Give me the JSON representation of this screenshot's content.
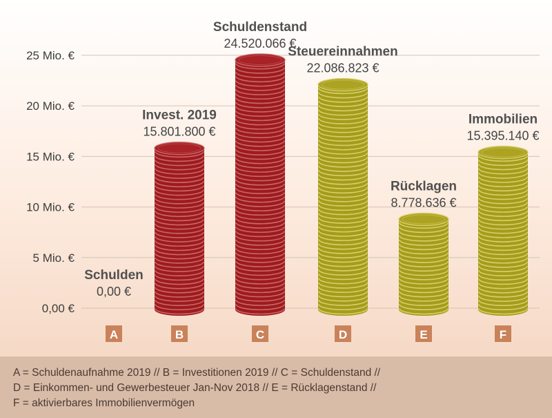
{
  "chart_data": {
    "type": "bar",
    "title": "",
    "xlabel": "",
    "ylabel": "",
    "ylim": [
      0,
      25000000
    ],
    "grid": true,
    "y_ticks": [
      {
        "value": 0,
        "label": "0,00 €"
      },
      {
        "value": 5000000,
        "label": "5 Mio. €"
      },
      {
        "value": 10000000,
        "label": "10 Mio. €"
      },
      {
        "value": 15000000,
        "label": "15 Mio. €"
      },
      {
        "value": 20000000,
        "label": "20 Mio. €"
      },
      {
        "value": 25000000,
        "label": "25 Mio. €"
      }
    ],
    "categories": [
      "A",
      "B",
      "C",
      "D",
      "E",
      "F"
    ],
    "values": [
      0,
      15801800,
      24520066,
      22086823,
      8778636,
      15395140
    ],
    "bar_titles": [
      "Schulden",
      "Invest. 2019",
      "Schuldenstand",
      "Steuereinnahmen",
      "Rücklagen",
      "Immobilien"
    ],
    "value_labels": [
      "0,00 €",
      "15.801.800 €",
      "24.520.066 €",
      "22.086.823 €",
      "8.778.636 €",
      "15.395.140 €"
    ],
    "bar_colors": [
      "#9e1b1e",
      "#9e1b1e",
      "#9e1b1e",
      "#a59c1c",
      "#a59c1c",
      "#a59c1c"
    ],
    "bar_edge_colors": [
      "#c9686a",
      "#c9686a",
      "#c9686a",
      "#d6cf6a",
      "#d6cf6a",
      "#d6cf6a"
    ],
    "bar_top_colors": [
      "#a82226",
      "#a82226",
      "#a82226",
      "#ada323",
      "#ada323",
      "#ada323"
    ],
    "category_box_color": "#c9825a",
    "grid_color": "#d5c3b5"
  },
  "legend": {
    "lines": [
      "A = Schuldenaufnahme 2019 // B = Investitionen 2019 // C = Schuldenstand //",
      "D = Einkommen- und Gewerbesteuer Jan-Nov 2018 // E = Rücklagenstand //",
      "F = aktivierbares Immobilienvermögen"
    ]
  }
}
